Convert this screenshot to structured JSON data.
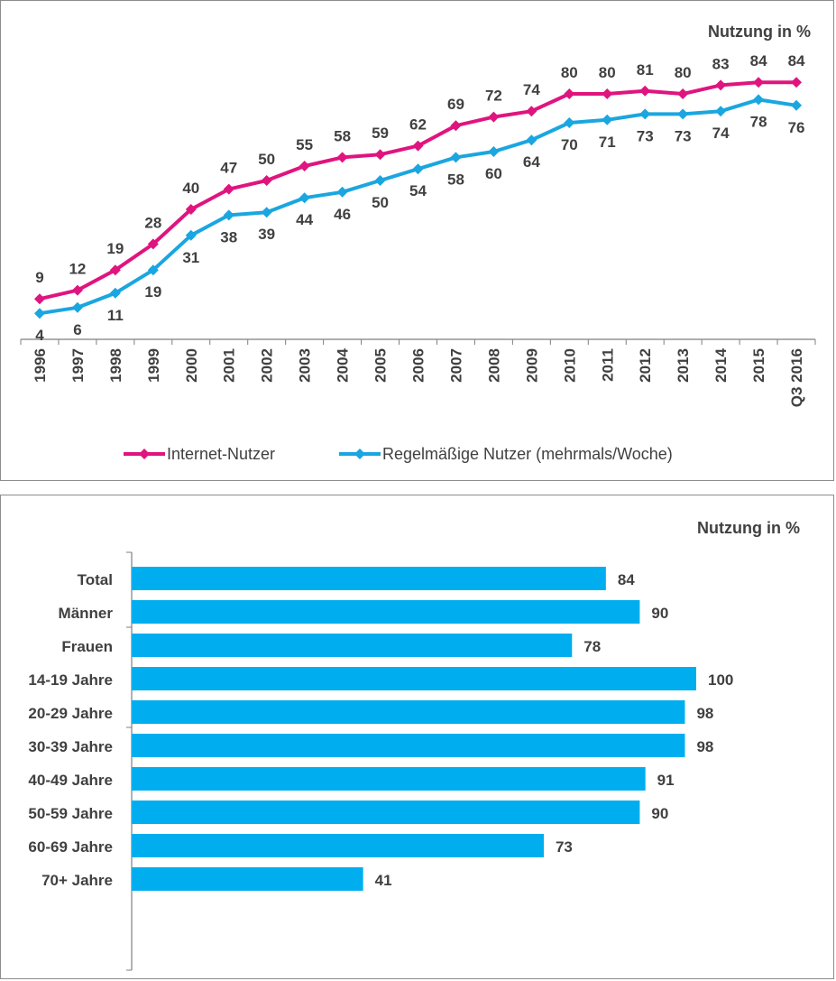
{
  "colors": {
    "internet": "#e0147f",
    "regular": "#1aa6e0",
    "bar": "#00aeef",
    "text": "#404040",
    "axis": "#7f7f7f"
  },
  "chart_data": [
    {
      "type": "line",
      "unit_label": "Nutzung in %",
      "categories": [
        "1996",
        "1997",
        "1998",
        "1999",
        "2000",
        "2001",
        "2002",
        "2003",
        "2004",
        "2005",
        "2006",
        "2007",
        "2008",
        "2009",
        "2010",
        "2011",
        "2012",
        "2013",
        "2014",
        "2015",
        "Q3 2016"
      ],
      "ylim": [
        0,
        90
      ],
      "series": [
        {
          "name": "Internet-Nutzer",
          "values": [
            9,
            12,
            19,
            28,
            40,
            47,
            50,
            55,
            58,
            59,
            62,
            69,
            72,
            74,
            80,
            80,
            81,
            80,
            83,
            84,
            84
          ]
        },
        {
          "name": "Regelmäßige Nutzer (mehrmals/Woche)",
          "values": [
            4,
            6,
            11,
            19,
            31,
            38,
            39,
            44,
            46,
            50,
            54,
            58,
            60,
            64,
            70,
            71,
            73,
            73,
            74,
            78,
            76
          ]
        }
      ],
      "legend": "bottom"
    },
    {
      "type": "bar",
      "orientation": "horizontal",
      "unit_label": "Nutzung in %",
      "groups": [
        [
          {
            "label": "Total",
            "value": 84
          }
        ],
        [
          {
            "label": "Männer",
            "value": 90
          },
          {
            "label": "Frauen",
            "value": 78
          }
        ],
        [
          {
            "label": "14-19 Jahre",
            "value": 100
          },
          {
            "label": "20-29 Jahre",
            "value": 98
          },
          {
            "label": "30-39 Jahre",
            "value": 98
          },
          {
            "label": "40-49 Jahre",
            "value": 91
          },
          {
            "label": "50-59 Jahre",
            "value": 90
          },
          {
            "label": "60-69 Jahre",
            "value": 73
          },
          {
            "label": "70+ Jahre",
            "value": 41
          }
        ]
      ],
      "xlim": [
        0,
        100
      ]
    }
  ]
}
